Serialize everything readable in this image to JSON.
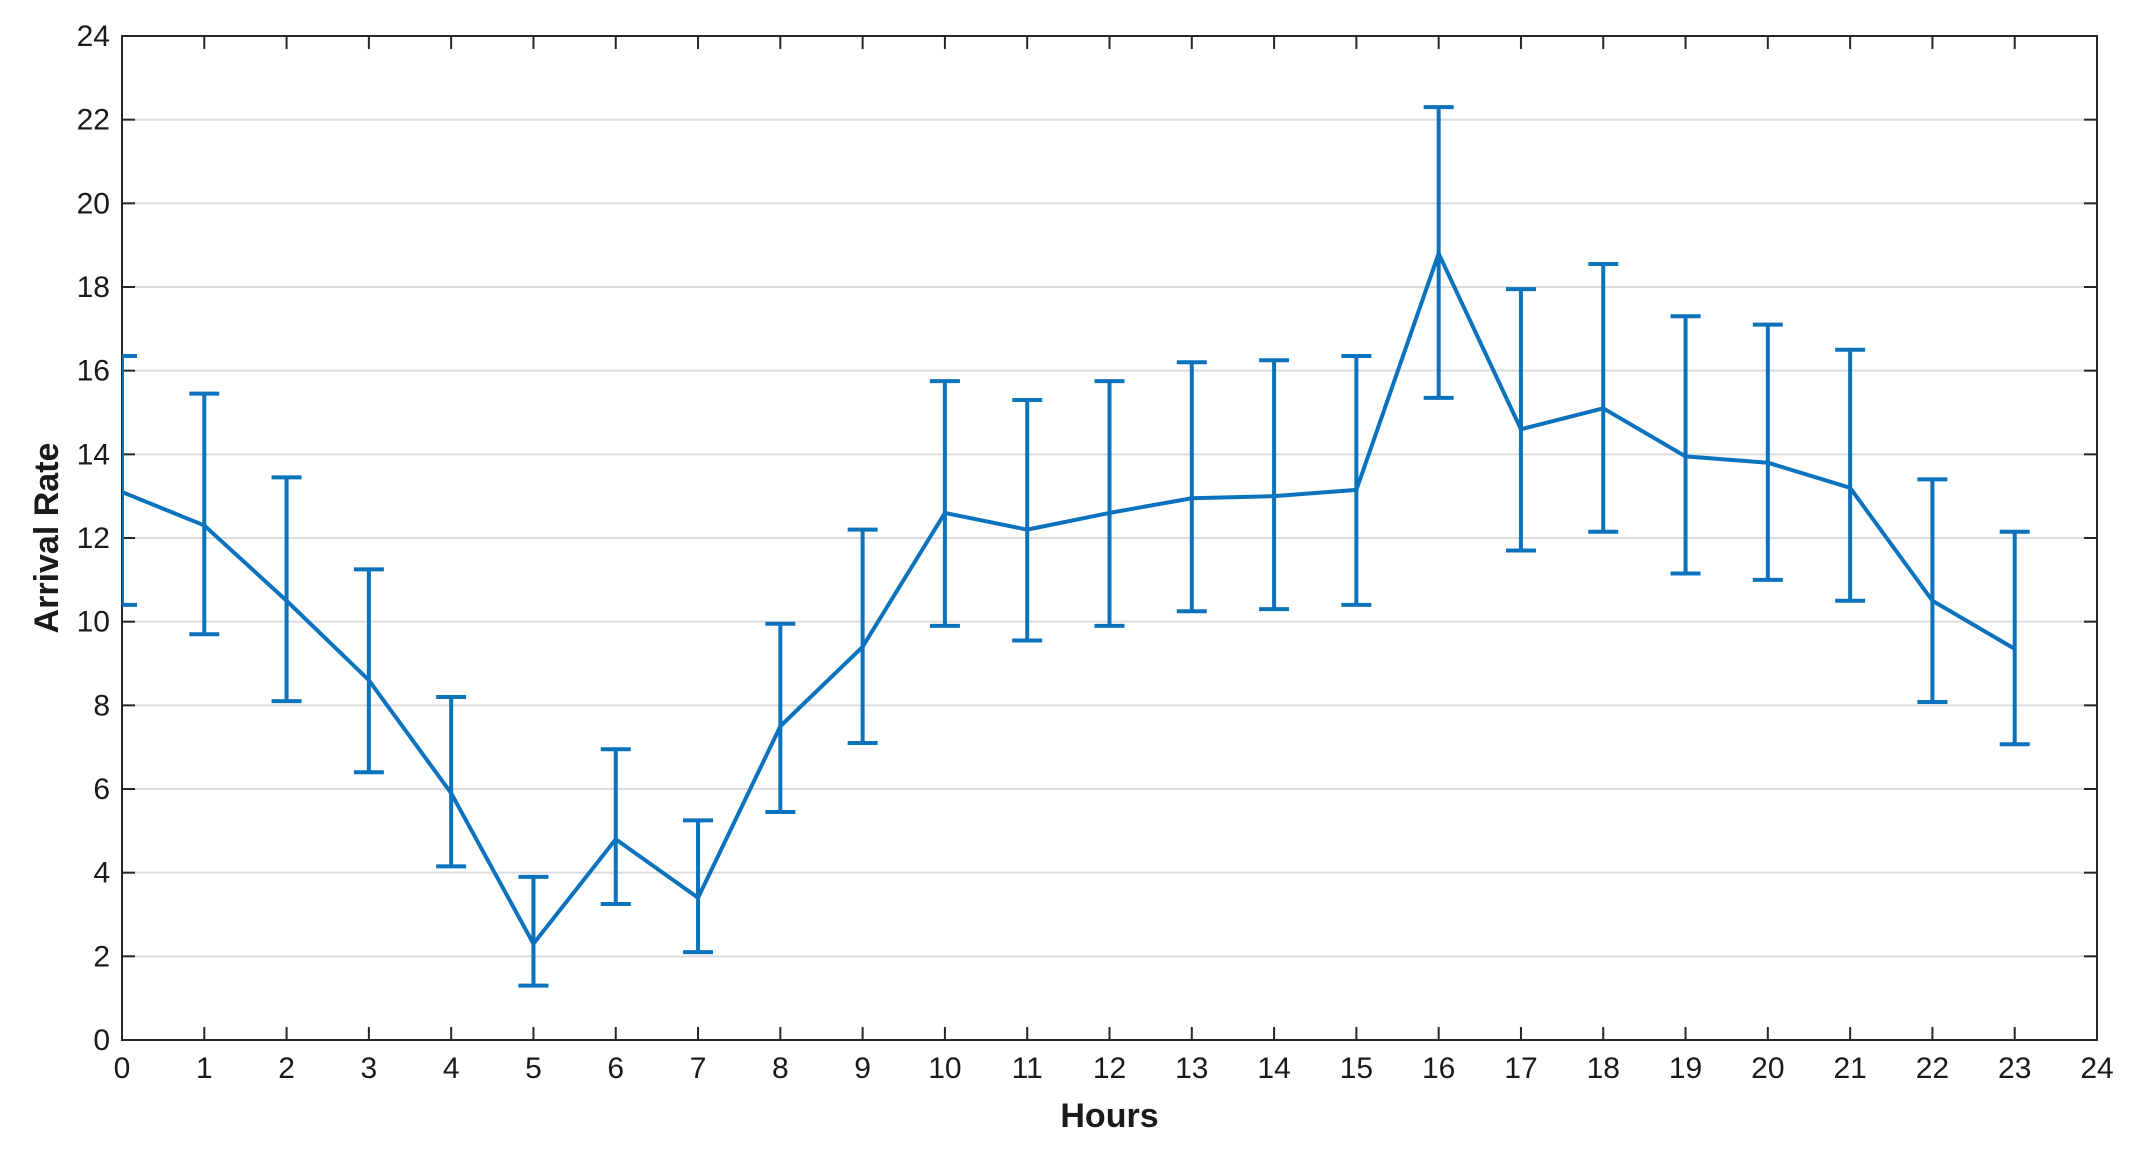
{
  "chart_data": {
    "type": "line",
    "xlabel": "Hours",
    "ylabel": "Arrival Rate",
    "xlim": [
      0,
      24
    ],
    "ylim": [
      0,
      24
    ],
    "xticks": [
      0,
      1,
      2,
      3,
      4,
      5,
      6,
      7,
      8,
      9,
      10,
      11,
      12,
      13,
      14,
      15,
      16,
      17,
      18,
      19,
      20,
      21,
      22,
      23,
      24
    ],
    "yticks": [
      0,
      2,
      4,
      6,
      8,
      10,
      12,
      14,
      16,
      18,
      20,
      22,
      24
    ],
    "grid": "horizontal",
    "colors": {
      "series": "#0b72bd",
      "grid": "#dcdcdc",
      "axis": "#262626"
    },
    "series": [
      {
        "x": [
          0,
          1,
          2,
          3,
          4,
          5,
          6,
          7,
          8,
          9,
          10,
          11,
          12,
          13,
          14,
          15,
          16,
          17,
          18,
          19,
          20,
          21,
          22,
          23
        ],
        "y": [
          13.1,
          12.3,
          10.5,
          8.6,
          5.9,
          2.3,
          4.8,
          3.4,
          7.5,
          9.4,
          12.6,
          12.2,
          12.6,
          12.95,
          13.0,
          13.15,
          18.8,
          14.6,
          15.1,
          13.95,
          13.8,
          13.2,
          10.5,
          9.35
        ],
        "err_low": [
          10.4,
          9.7,
          8.1,
          6.4,
          4.15,
          1.3,
          3.25,
          2.1,
          5.45,
          7.1,
          9.9,
          9.55,
          9.9,
          10.25,
          10.3,
          10.4,
          15.35,
          11.7,
          12.15,
          11.15,
          11.0,
          10.5,
          8.08,
          7.07
        ],
        "err_high": [
          16.35,
          15.45,
          13.45,
          11.25,
          8.2,
          3.9,
          6.95,
          5.25,
          9.95,
          12.2,
          15.75,
          15.3,
          15.75,
          16.2,
          16.25,
          16.35,
          22.3,
          17.95,
          18.55,
          17.3,
          17.1,
          16.5,
          13.4,
          12.15
        ]
      }
    ]
  }
}
